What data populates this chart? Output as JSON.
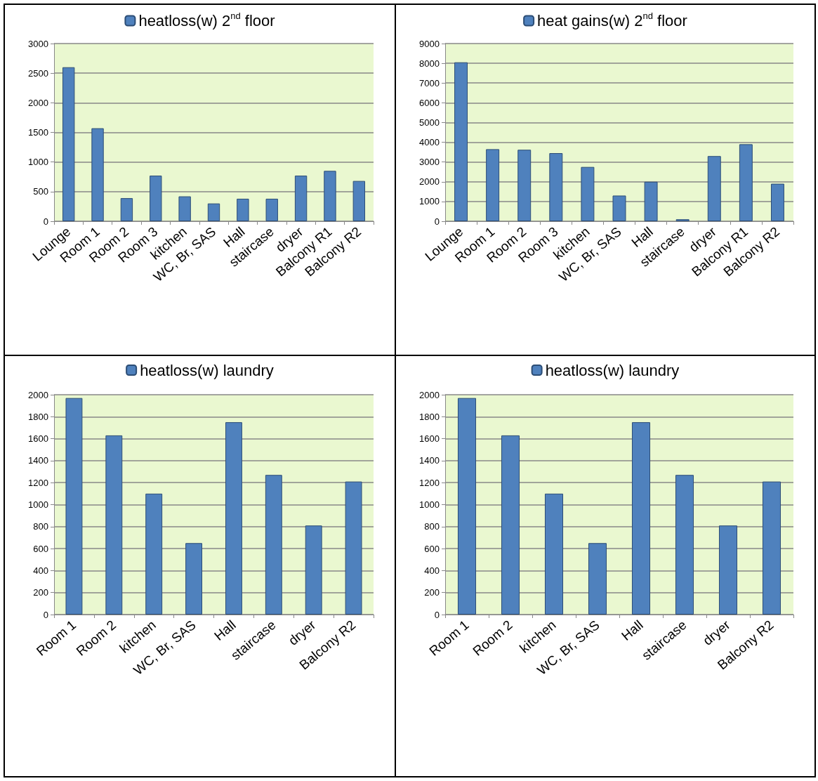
{
  "chart_data": [
    {
      "type": "bar",
      "categories": [
        "Lounge",
        "Room 1",
        "Room 2",
        "Room 3",
        "kitchen",
        "WC, Br, SAS",
        "Hall",
        "staircase",
        "dryer",
        "Balcony R1",
        "Balcony R2"
      ],
      "series": [
        {
          "name": "heatloss(w) 2$^{nd}$ floor",
          "color": "#4f81bd",
          "values": [
            2600,
            1570,
            390,
            770,
            420,
            300,
            380,
            380,
            770,
            850,
            680
          ]
        }
      ],
      "ylim": [
        0,
        3000
      ],
      "yticks": [
        0,
        500,
        1000,
        1500,
        2000,
        2500,
        3000
      ],
      "grid": "y",
      "legend": "top"
    },
    {
      "type": "bar",
      "categories": [
        "Lounge",
        "Room 1",
        "Room 2",
        "Room 3",
        "kitchen",
        "WC, Br, SAS",
        "Hall",
        "staircase",
        "dryer",
        "Balcony R1",
        "Balcony R2"
      ],
      "series": [
        {
          "name": "heat gains(w) 2$^{nd}$ floor",
          "color": "#4f81bd",
          "values": [
            8050,
            3650,
            3620,
            3450,
            2750,
            1300,
            2000,
            100,
            3300,
            3900,
            1900
          ]
        }
      ],
      "ylim": [
        0,
        9000
      ],
      "yticks": [
        0,
        1000,
        2000,
        3000,
        4000,
        5000,
        6000,
        7000,
        8000,
        9000
      ],
      "grid": "y",
      "legend": "top"
    },
    {
      "type": "bar",
      "categories": [
        "Room 1",
        "Room 2",
        "kitchen",
        "WC, Br, SAS",
        "Hall",
        "staircase",
        "dryer",
        "Balcony R2"
      ],
      "series": [
        {
          "name": "heatloss(w) laundry",
          "color": "#4f81bd",
          "values": [
            1970,
            1630,
            1100,
            650,
            1750,
            1270,
            810,
            1210
          ]
        }
      ],
      "ylim": [
        0,
        2000
      ],
      "yticks": [
        0,
        200,
        400,
        600,
        800,
        1000,
        1200,
        1400,
        1600,
        1800,
        2000
      ],
      "grid": "y",
      "legend": "top"
    },
    {
      "type": "bar",
      "categories": [
        "Room 1",
        "Room 2",
        "kitchen",
        "WC, Br, SAS",
        "Hall",
        "staircase",
        "dryer",
        "Balcony R2"
      ],
      "series": [
        {
          "name": "heatloss(w) laundry",
          "color": "#4f81bd",
          "values": [
            1970,
            1630,
            1100,
            650,
            1750,
            1270,
            810,
            1210
          ]
        }
      ],
      "ylim": [
        0,
        2000
      ],
      "yticks": [
        0,
        200,
        400,
        600,
        800,
        1000,
        1200,
        1400,
        1600,
        1800,
        2000
      ],
      "grid": "y",
      "legend": "top"
    }
  ]
}
